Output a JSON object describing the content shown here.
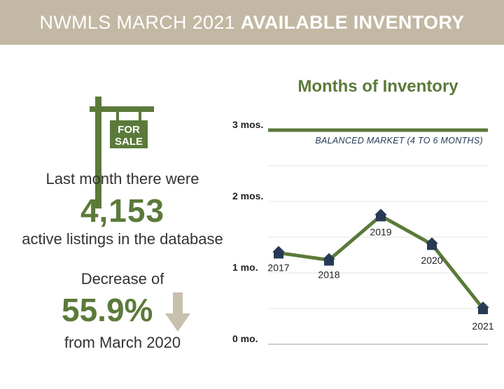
{
  "banner": {
    "title_light": "NWMLS MARCH 2021",
    "title_bold": "AVAILABLE INVENTORY"
  },
  "listings": {
    "line1": "Last month there were",
    "count": "4,153",
    "line2": "active listings in the database"
  },
  "sign": {
    "line1": "FOR",
    "line2": "SALE"
  },
  "change": {
    "label": "Decrease of",
    "percent": "55.9%",
    "line2": "from March 2020"
  },
  "colors": {
    "banner": "#c2b8a3",
    "green": "#5b7a3a",
    "marker": "#263a55",
    "arrow": "#c8bfad"
  },
  "chart_data": {
    "type": "line",
    "title": "Months of Inventory",
    "x": [
      "2017",
      "2018",
      "2019",
      "2020",
      "2021"
    ],
    "values": [
      1.28,
      1.18,
      1.8,
      1.4,
      0.5
    ],
    "ylim": [
      0,
      3
    ],
    "yticks": [
      {
        "value": 0,
        "label": "0 mo."
      },
      {
        "value": 1,
        "label": "1 mo."
      },
      {
        "value": 2,
        "label": "2 mos."
      },
      {
        "value": 3,
        "label": "3 mos."
      }
    ],
    "reference_line": {
      "value": 3,
      "label": "BALANCED MARKET (4 TO 6 MONTHS)"
    },
    "grid": true
  }
}
